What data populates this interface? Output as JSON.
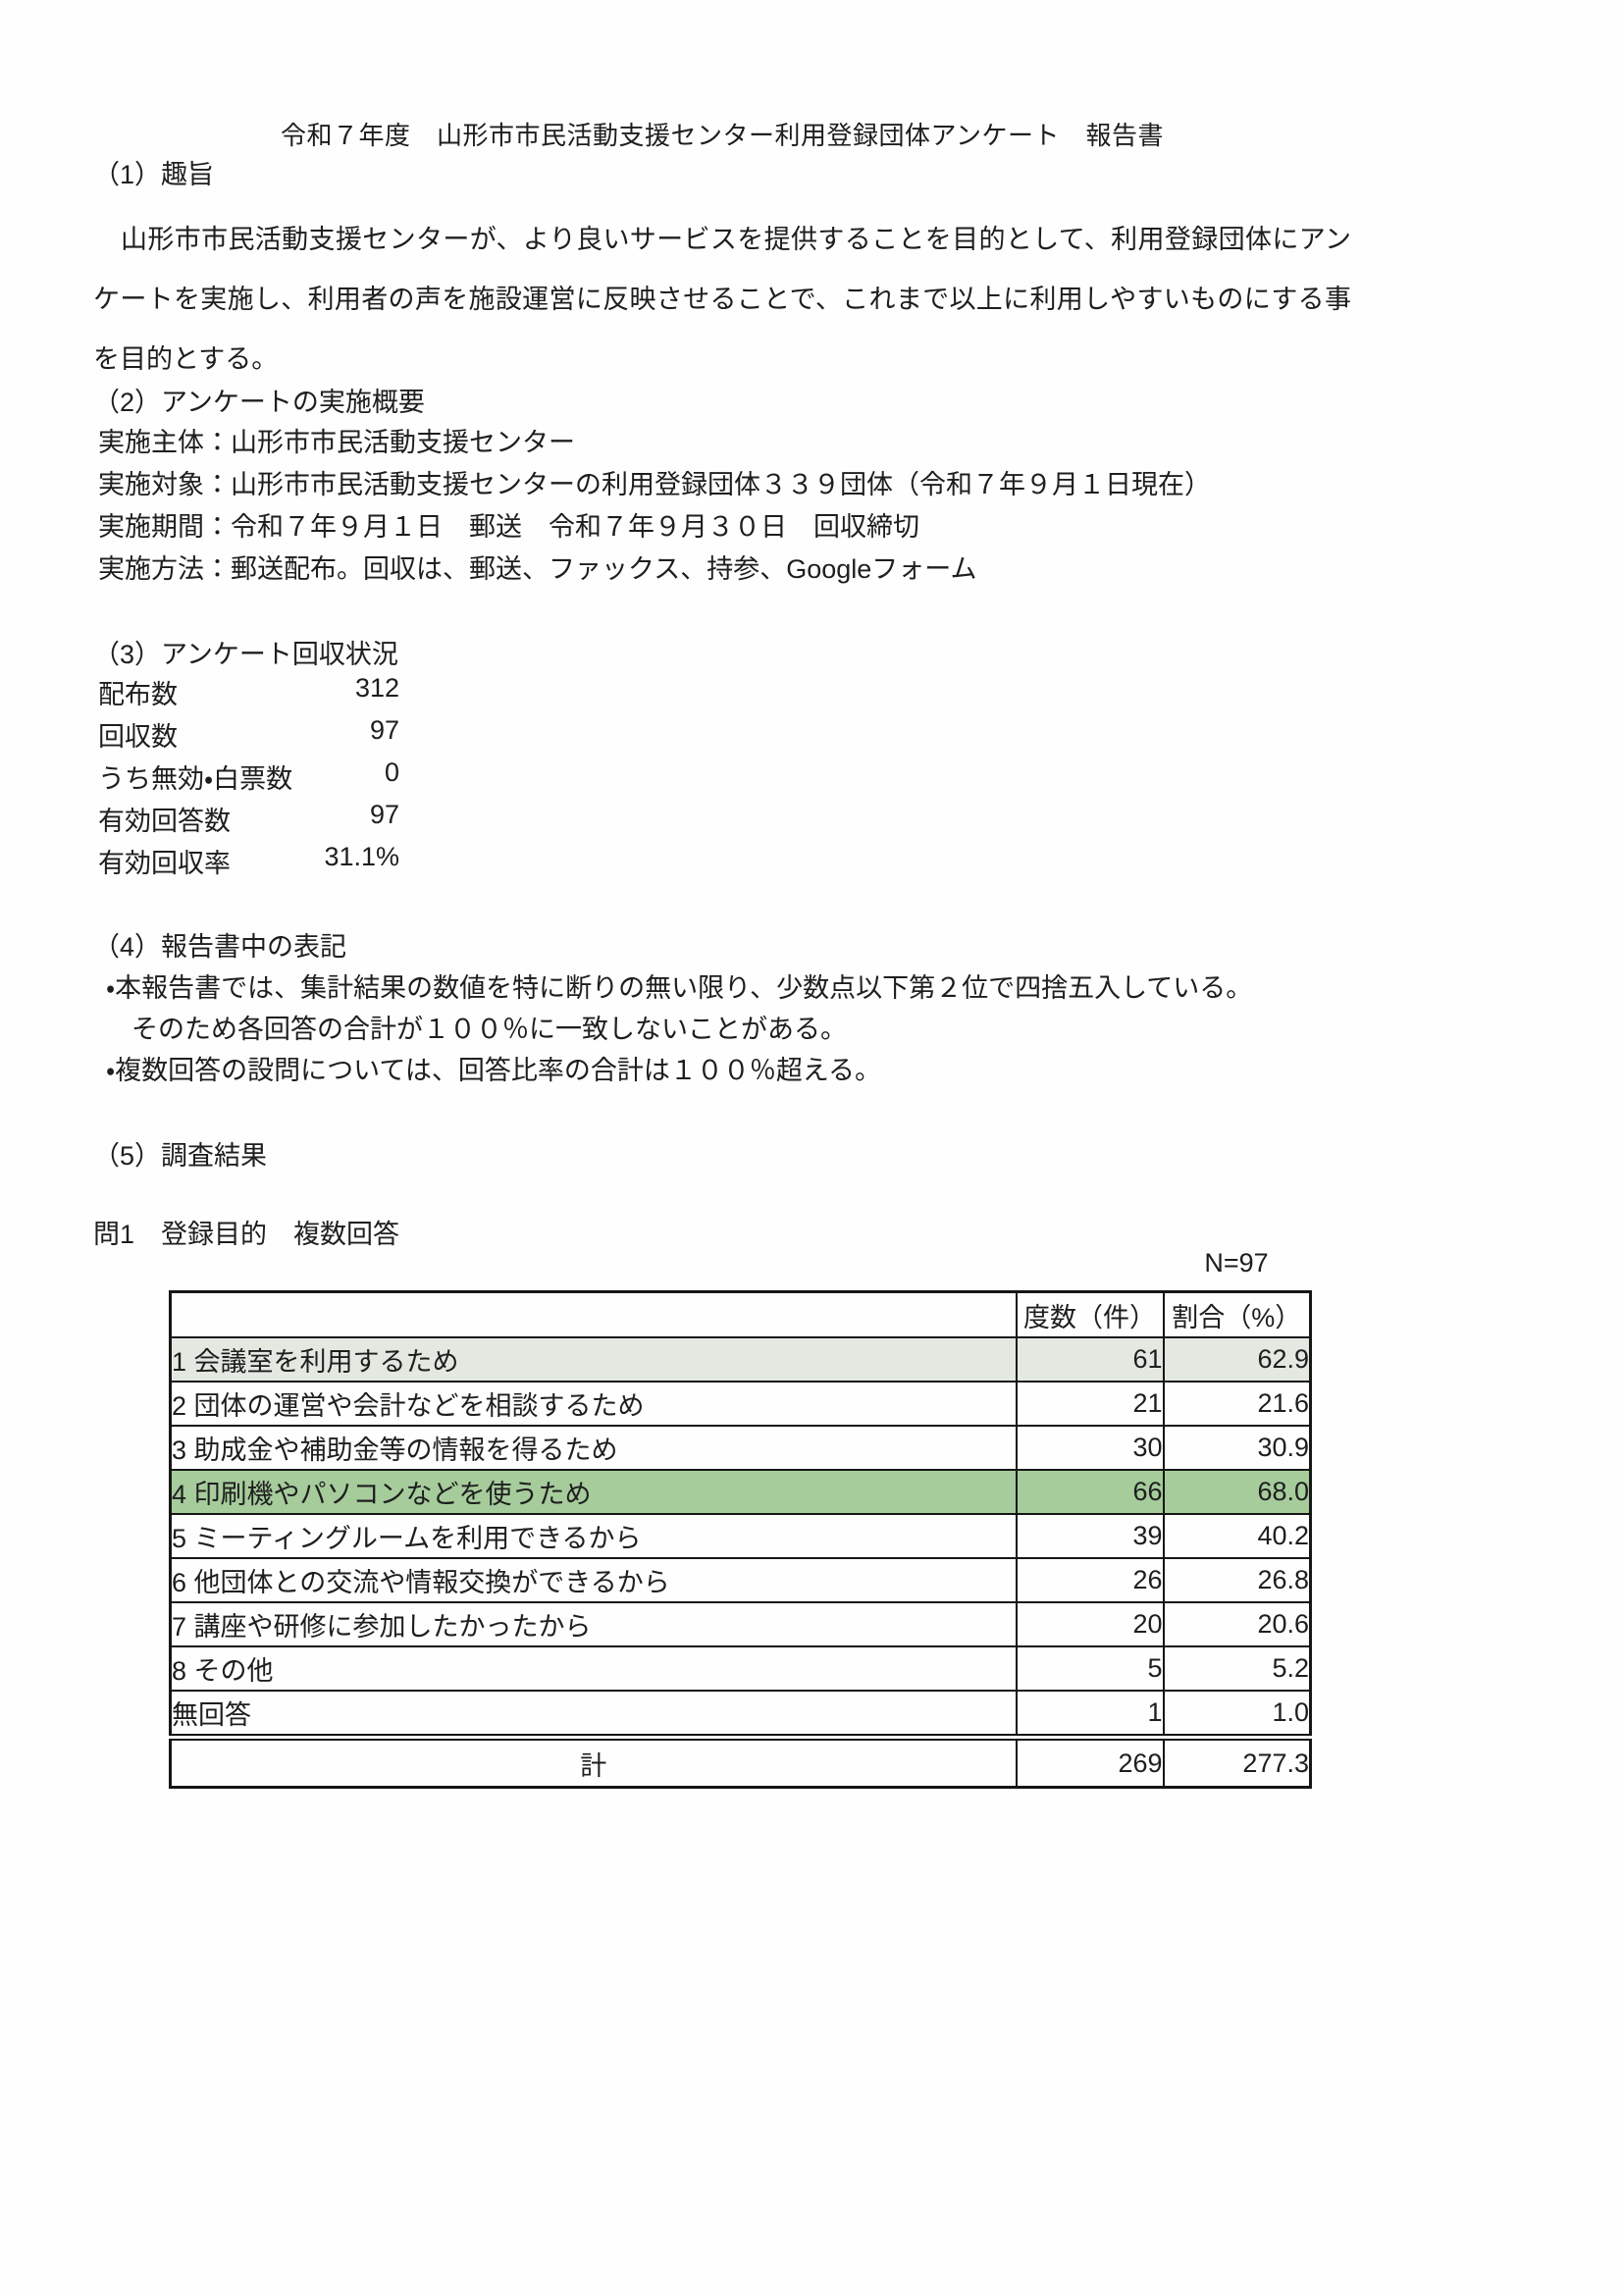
{
  "document": {
    "title": "令和７年度　山形市市民活動支援センター利用登録団体アンケート　報告書"
  },
  "section1": {
    "heading": "（1）趣旨",
    "body": "山形市市民活動支援センターが、より良いサービスを提供することを目的として、利用登録団体にアンケートを実施し、利用者の声を施設運営に反映させることで、これまで以上に利用しやすいものにする事を目的とする。"
  },
  "section2": {
    "heading": "（2）アンケートの実施概要",
    "lines": [
      "実施主体：山形市市民活動支援センター",
      "実施対象：山形市市民活動支援センターの利用登録団体３３９団体（令和７年９月１日現在）",
      "実施期間：令和７年９月１日　郵送　令和７年９月３０日　回収締切",
      "実施方法：郵送配布。回収は、郵送、ファックス、持参、Googleフォーム"
    ]
  },
  "section3": {
    "heading": "（3）アンケート回収状況",
    "stats": [
      {
        "label": "配布数",
        "value": "312"
      },
      {
        "label": "回収数",
        "value": "97"
      },
      {
        "label": "うち無効・白票数",
        "value": "0"
      },
      {
        "label": "有効回答数",
        "value": "97"
      },
      {
        "label": "有効回収率",
        "value": "31.1%"
      }
    ]
  },
  "section4": {
    "heading": "（4）報告書中の表記",
    "notes": [
      "・本報告書では、集計結果の数値を特に断りの無い限り、少数点以下第２位で四捨五入している。",
      "そのため各回答の合計が１００％に一致しないことがある。",
      "・複数回答の設問については、回答比率の合計は１００％超える。"
    ]
  },
  "section5": {
    "heading": "（5）調査結果"
  },
  "question1": {
    "label": "問1　登録目的　複数回答",
    "n_label": "N=97",
    "table": {
      "headers": [
        "",
        "度数（件）",
        "割合（%）"
      ],
      "rows": [
        {
          "label": "1 会議室を利用するため",
          "count": "61",
          "percent": "62.9"
        },
        {
          "label": "2 団体の運営や会計などを相談するため",
          "count": "21",
          "percent": "21.6"
        },
        {
          "label": "3 助成金や補助金等の情報を得るため",
          "count": "30",
          "percent": "30.9"
        },
        {
          "label": "4 印刷機やパソコンなどを使うため",
          "count": "66",
          "percent": "68.0"
        },
        {
          "label": "5 ミーティングルームを利用できるから",
          "count": "39",
          "percent": "40.2"
        },
        {
          "label": "6 他団体との交流や情報交換ができるから",
          "count": "26",
          "percent": "26.8"
        },
        {
          "label": "7 講座や研修に参加したかったから",
          "count": "20",
          "percent": "20.6"
        },
        {
          "label": "8 その他",
          "count": "5",
          "percent": "5.2"
        },
        {
          "label": "無回答",
          "count": "1",
          "percent": "1.0"
        }
      ],
      "total": {
        "label": "計",
        "count": "269",
        "percent": "277.3"
      }
    }
  },
  "colors": {
    "row_highlight_light": "#e3e9e1",
    "row_highlight_green": "#a6cc9c"
  }
}
